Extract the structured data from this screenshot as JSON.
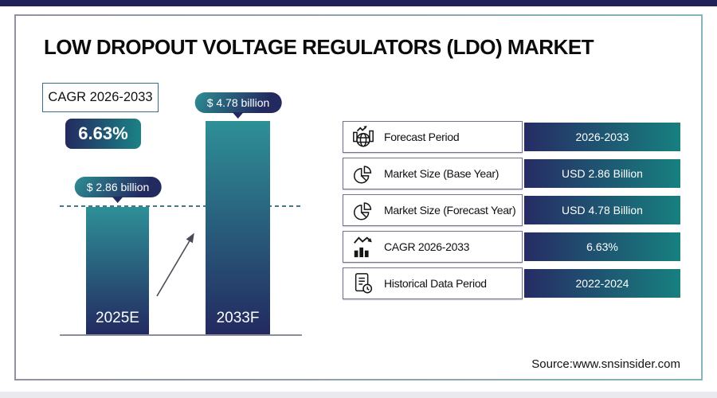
{
  "header": {
    "title": "LOW DROPOUT VOLTAGE REGULATORS (LDO) MARKET"
  },
  "cagr_callout": {
    "label": "CAGR 2026-2033",
    "value": "6.63%"
  },
  "chart_data": {
    "type": "bar",
    "categories": [
      "2025E",
      "2033F"
    ],
    "values": [
      2.86,
      4.78
    ],
    "value_labels": [
      "$ 2.86 billion",
      "$ 4.78 billion"
    ],
    "unit": "USD billion",
    "ylim": [
      0,
      5
    ],
    "grid": false,
    "annotations": "dashed reference line at 2025E bar top; diagonal growth arrow between bars"
  },
  "info_table": {
    "rows": [
      {
        "icon": "globe-growth-icon",
        "label": "Forecast Period",
        "value": "2026-2033"
      },
      {
        "icon": "pie-chart-icon",
        "label": "Market Size (Base Year)",
        "value": "USD 2.86 Billion"
      },
      {
        "icon": "pie-chart-icon",
        "label": "Market Size (Forecast Year)",
        "value": "USD 4.78 Billion"
      },
      {
        "icon": "bar-chart-arrow-icon",
        "label": "CAGR 2026-2033",
        "value": "6.63%"
      },
      {
        "icon": "document-clock-icon",
        "label": "Historical Data Period",
        "value": "2022-2024"
      }
    ]
  },
  "footer": {
    "source": "Source:www.snsinsider.com"
  },
  "colors": {
    "top_bar": "#1f2157",
    "navy": "#232a60",
    "teal": "#17807f",
    "bar_top_teal": "#2e9097",
    "frame_border_left": "#9490a8",
    "frame_border_right": "#84b6bb"
  }
}
